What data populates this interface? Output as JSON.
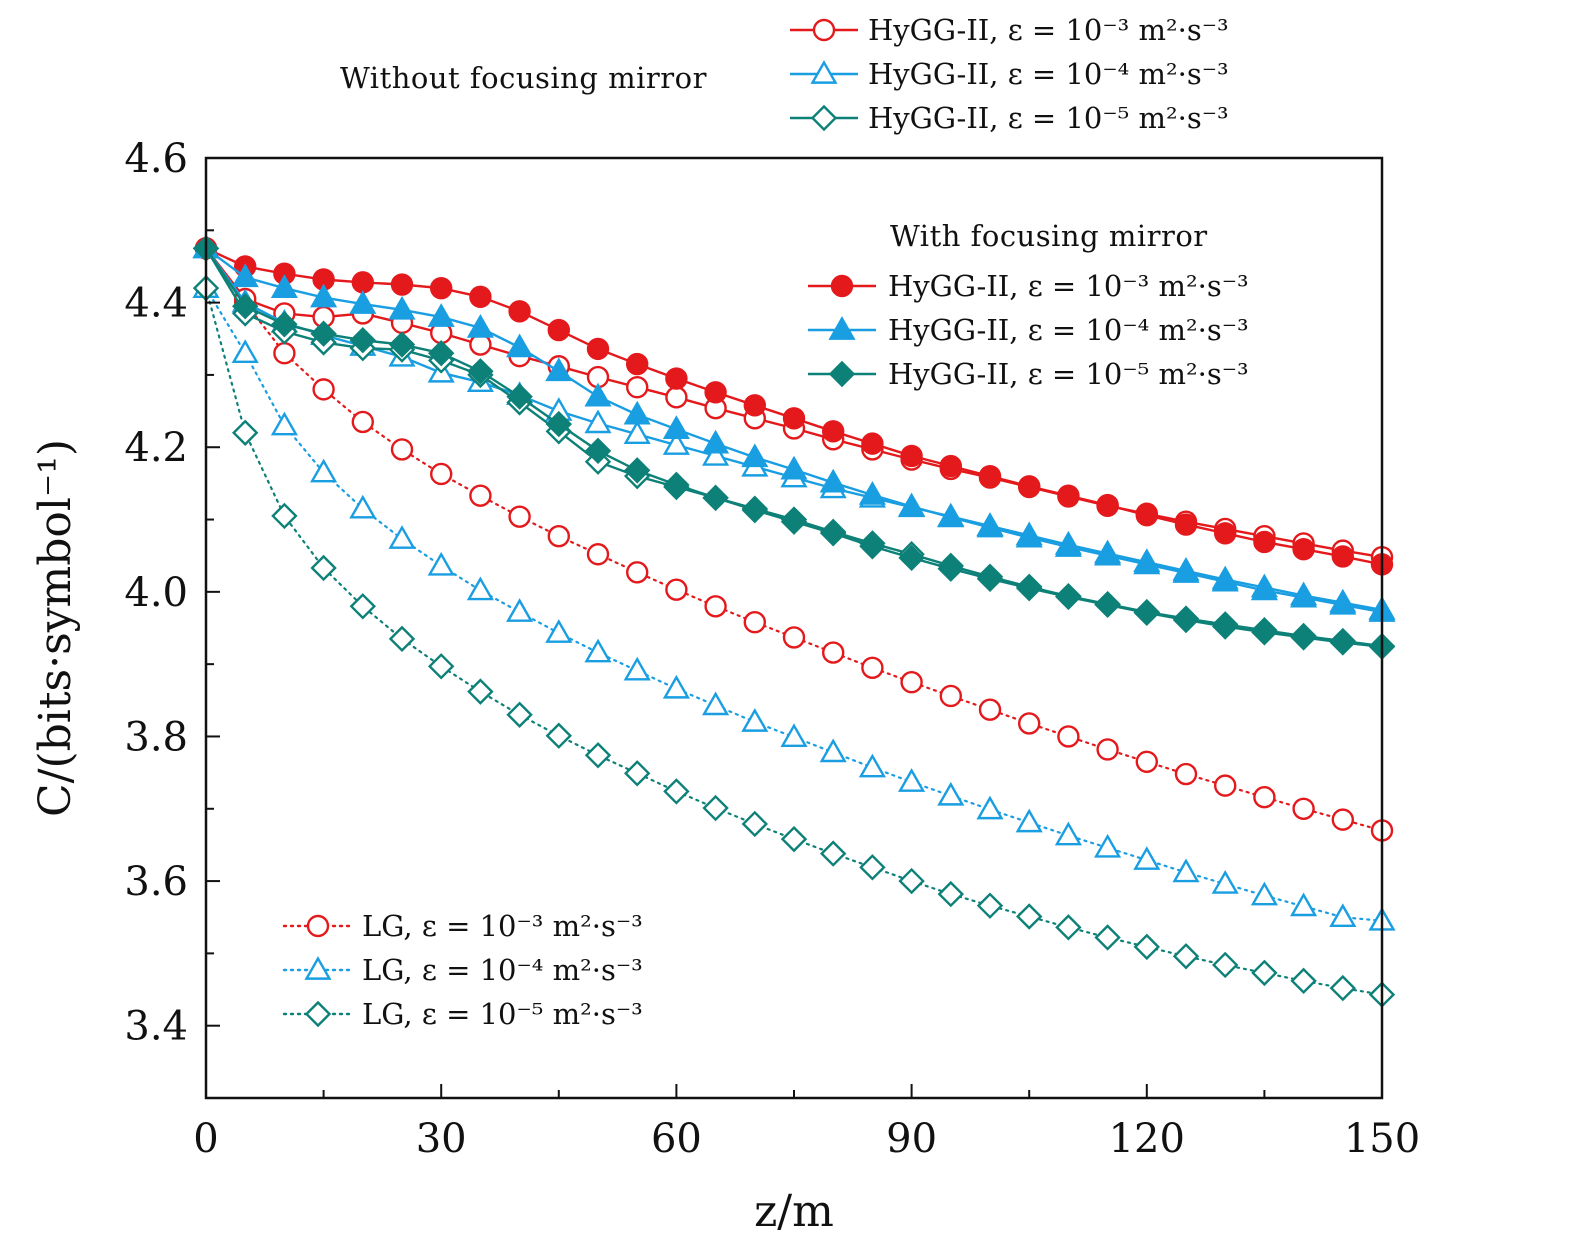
{
  "chart_data": {
    "type": "line",
    "xlabel": "z/m",
    "ylabel": "C/(bits·symbol⁻¹)",
    "xlim": [
      0,
      150
    ],
    "ylim": [
      3.3,
      4.6
    ],
    "xticks": [
      0,
      30,
      60,
      90,
      120,
      150
    ],
    "yticks": [
      3.4,
      3.6,
      3.8,
      4.0,
      4.2,
      4.4,
      4.6
    ],
    "grid": false,
    "x": [
      0,
      5,
      10,
      15,
      20,
      25,
      30,
      35,
      40,
      45,
      50,
      55,
      60,
      65,
      70,
      75,
      80,
      85,
      90,
      95,
      100,
      105,
      110,
      115,
      120,
      125,
      130,
      135,
      140,
      145,
      150
    ],
    "legend_groups": [
      {
        "title": "Without focusing mirror",
        "placement": "top-outside",
        "series": [
          0,
          1,
          2
        ]
      },
      {
        "title": "With focusing mirror",
        "placement": "top-right",
        "series": [
          3,
          4,
          5
        ]
      },
      {
        "title": "",
        "placement": "bottom-left",
        "series": [
          6,
          7,
          8
        ]
      }
    ],
    "series": [
      {
        "name": "HyGG-II, ε = 10⁻³ m²·s⁻³",
        "color": "#e4191c",
        "marker": "circle",
        "filled": false,
        "line": "solid",
        "values": [
          4.475,
          4.405,
          4.385,
          4.38,
          4.385,
          4.372,
          4.358,
          4.342,
          4.326,
          4.312,
          4.297,
          4.283,
          4.269,
          4.254,
          4.24,
          4.226,
          4.211,
          4.197,
          4.183,
          4.17,
          4.158,
          4.145,
          4.132,
          4.119,
          4.108,
          4.097,
          4.087,
          4.077,
          4.067,
          4.057,
          4.048
        ]
      },
      {
        "name": "HyGG-II, ε = 10⁻⁴ m²·s⁻³",
        "color": "#1a9ee2",
        "marker": "triangle",
        "filled": false,
        "line": "solid",
        "values": [
          4.475,
          4.4,
          4.372,
          4.355,
          4.34,
          4.325,
          4.303,
          4.29,
          4.272,
          4.25,
          4.233,
          4.218,
          4.203,
          4.188,
          4.173,
          4.158,
          4.143,
          4.13,
          4.117,
          4.104,
          4.091,
          4.078,
          4.065,
          4.053,
          4.041,
          4.029,
          4.017,
          4.006,
          3.995,
          3.985,
          3.975
        ]
      },
      {
        "name": "HyGG-II, ε = 10⁻⁵ m²·s⁻³",
        "color": "#0d8178",
        "marker": "diamond",
        "filled": false,
        "line": "solid",
        "values": [
          4.475,
          4.385,
          4.36,
          4.345,
          4.337,
          4.335,
          4.32,
          4.3,
          4.262,
          4.222,
          4.18,
          4.16,
          4.145,
          4.13,
          4.115,
          4.1,
          4.083,
          4.067,
          4.052,
          4.036,
          4.021,
          4.007,
          3.994,
          3.983,
          3.972,
          3.963,
          3.955,
          3.947,
          3.939,
          3.932,
          3.925
        ]
      },
      {
        "name": "HyGG-II, ε = 10⁻³ m²·s⁻³",
        "color": "#e4191c",
        "marker": "circle",
        "filled": true,
        "line": "solid",
        "values": [
          4.475,
          4.45,
          4.44,
          4.432,
          4.428,
          4.425,
          4.42,
          4.408,
          4.388,
          4.362,
          4.336,
          4.315,
          4.295,
          4.276,
          4.258,
          4.24,
          4.222,
          4.205,
          4.188,
          4.174,
          4.16,
          4.146,
          4.133,
          4.12,
          4.106,
          4.093,
          4.081,
          4.069,
          4.059,
          4.049,
          4.038
        ]
      },
      {
        "name": "HyGG-II, ε = 10⁻⁴ m²·s⁻³",
        "color": "#1a9ee2",
        "marker": "triangle",
        "filled": true,
        "line": "solid",
        "values": [
          4.475,
          4.435,
          4.42,
          4.407,
          4.398,
          4.39,
          4.38,
          4.365,
          4.338,
          4.305,
          4.27,
          4.245,
          4.225,
          4.205,
          4.186,
          4.169,
          4.151,
          4.134,
          4.118,
          4.103,
          4.089,
          4.075,
          4.062,
          4.05,
          4.038,
          4.026,
          4.014,
          4.002,
          3.992,
          3.982,
          3.972
        ]
      },
      {
        "name": "HyGG-II, ε = 10⁻⁵ m²·s⁻³",
        "color": "#0d8178",
        "marker": "diamond",
        "filled": true,
        "line": "solid",
        "values": [
          4.475,
          4.395,
          4.37,
          4.357,
          4.348,
          4.342,
          4.33,
          4.305,
          4.27,
          4.232,
          4.195,
          4.168,
          4.148,
          4.13,
          4.113,
          4.097,
          4.081,
          4.063,
          4.047,
          4.032,
          4.018,
          4.005,
          3.993,
          3.982,
          3.971,
          3.961,
          3.952,
          3.944,
          3.937,
          3.93,
          3.924
        ]
      },
      {
        "name": "LG, ε = 10⁻³ m²·s⁻³",
        "color": "#e4191c",
        "marker": "circle",
        "filled": false,
        "line": "dotted",
        "values": [
          4.475,
          4.4,
          4.33,
          4.28,
          4.235,
          4.197,
          4.163,
          4.133,
          4.104,
          4.077,
          4.052,
          4.027,
          4.003,
          3.98,
          3.958,
          3.937,
          3.916,
          3.895,
          3.875,
          3.856,
          3.837,
          3.818,
          3.8,
          3.782,
          3.765,
          3.748,
          3.732,
          3.716,
          3.7,
          3.685,
          3.67
        ]
      },
      {
        "name": "LG, ε = 10⁻⁴ m²·s⁻³",
        "color": "#1a9ee2",
        "marker": "triangle",
        "filled": false,
        "line": "dotted",
        "values": [
          4.42,
          4.33,
          4.23,
          4.165,
          4.115,
          4.073,
          4.036,
          4.002,
          3.972,
          3.943,
          3.916,
          3.891,
          3.866,
          3.843,
          3.82,
          3.799,
          3.778,
          3.757,
          3.737,
          3.718,
          3.699,
          3.681,
          3.663,
          3.646,
          3.629,
          3.612,
          3.596,
          3.58,
          3.565,
          3.55,
          3.545
        ]
      },
      {
        "name": "LG, ε = 10⁻⁵ m²·s⁻³",
        "color": "#0d8178",
        "marker": "diamond",
        "filled": false,
        "line": "dotted",
        "values": [
          4.42,
          4.22,
          4.105,
          4.033,
          3.98,
          3.935,
          3.897,
          3.862,
          3.83,
          3.801,
          3.774,
          3.749,
          3.724,
          3.701,
          3.679,
          3.658,
          3.638,
          3.619,
          3.6,
          3.582,
          3.566,
          3.551,
          3.536,
          3.522,
          3.509,
          3.496,
          3.484,
          3.473,
          3.462,
          3.452,
          3.443
        ]
      }
    ]
  }
}
